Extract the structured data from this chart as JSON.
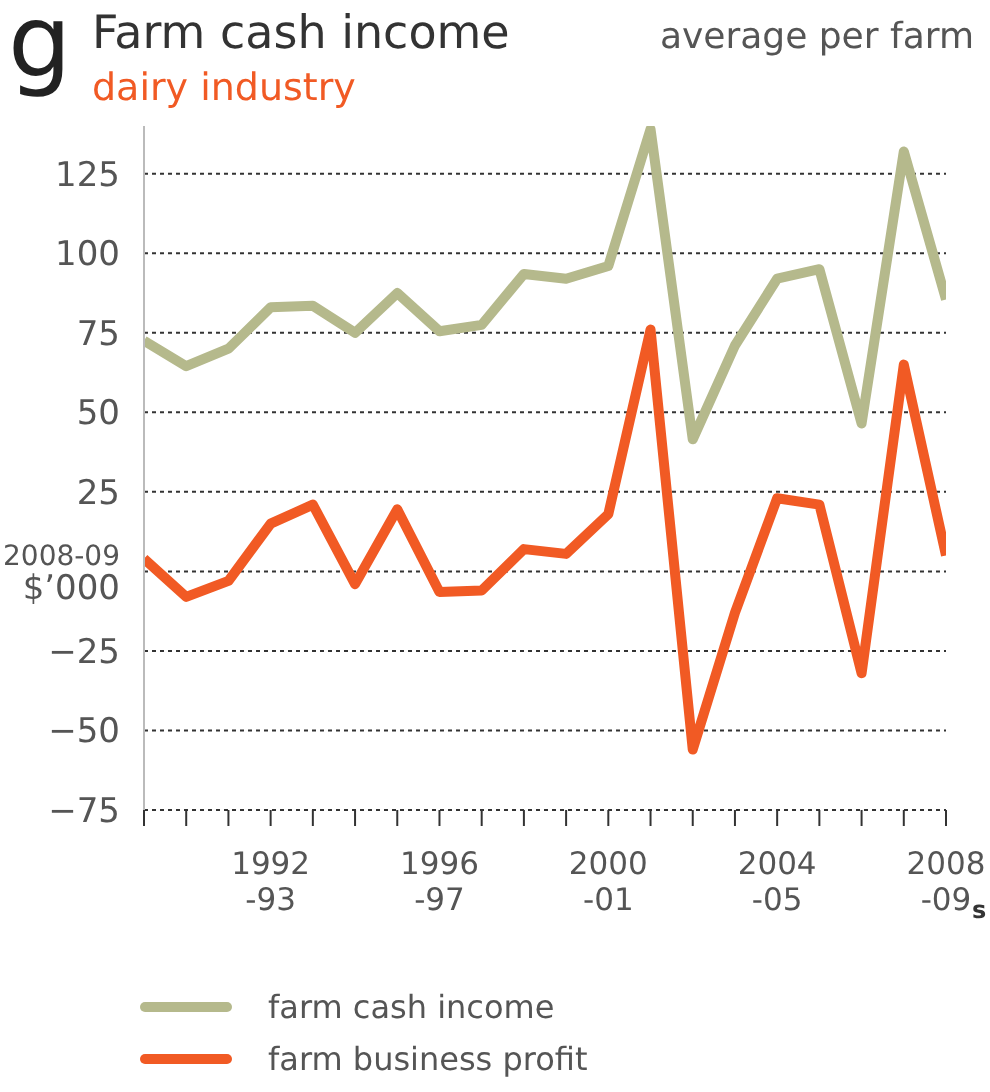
{
  "chart_data": {
    "type": "line",
    "title": "Farm cash income",
    "subtitle": "dairy industry",
    "annotations": [
      "g",
      "average per farm",
      "s"
    ],
    "categories": [
      null,
      null,
      null,
      "1992-93",
      null,
      null,
      null,
      "1996-97",
      null,
      null,
      null,
      "2000-01",
      null,
      null,
      null,
      "2004-05",
      null,
      null,
      null,
      "2008-09"
    ],
    "series": [
      {
        "name": "farm cash income",
        "color": "#b5b98c",
        "values": [
          72.5,
          64.5,
          70,
          83,
          83.5,
          75,
          87.5,
          75.5,
          77.5,
          93.5,
          92,
          96,
          139,
          41.5,
          71,
          92,
          95,
          46.5,
          132,
          85.5
        ]
      },
      {
        "name": "farm business profit",
        "color": "#f15a24",
        "values": [
          4,
          -8,
          -3,
          15,
          21,
          -4,
          19.5,
          -6.5,
          -6,
          7,
          5.5,
          18,
          76,
          -56,
          -13,
          23,
          21,
          -32,
          65,
          5
        ]
      }
    ],
    "ylim": [
      -75,
      140
    ],
    "yticks": [
      -75,
      -50,
      -25,
      {
        "value": 0,
        "label": "2008-09\n$’000"
      },
      25,
      50,
      75,
      100,
      125
    ],
    "grid": "y",
    "legend": "bottom",
    "marker": "none",
    "line_style": "solid"
  }
}
